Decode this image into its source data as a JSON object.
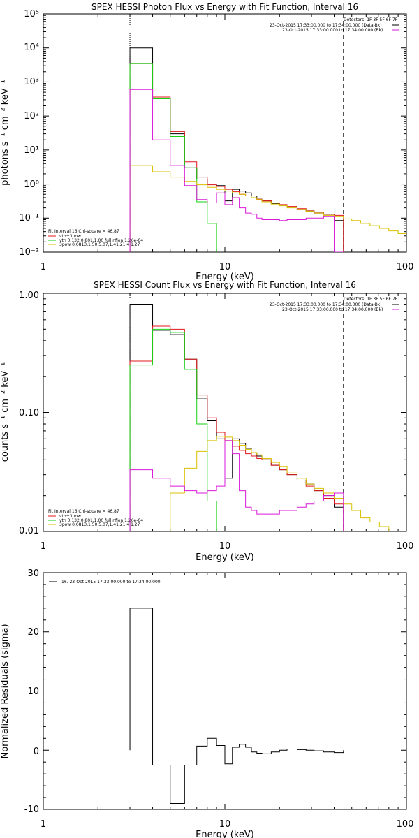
{
  "colors": {
    "black": "#000000",
    "red": "#e0181b",
    "green": "#16d012",
    "yellow": "#d9c000",
    "magenta": "#d91ad8"
  },
  "panel1": {
    "title": "SPEX HESSI Photon Flux vs Energy with Fit Function, Interval 16",
    "xlabel": "Energy (keV)",
    "ylabel": "photons s⁻¹ cm⁻² keV⁻¹",
    "xticks": [
      "1",
      "10",
      "100"
    ],
    "yticks": [
      "10⁻²",
      "10⁻¹",
      "10⁰",
      "10¹",
      "10²",
      "10³",
      "10⁴",
      "10⁵"
    ],
    "detectors": "Detectors: 1F 3F 5F 6F 7F",
    "times": [
      "23-Oct-2015 17:33:00.000 to 17:34:00.000 (Data-Bk)",
      "23-Oct-2015 17:33:00.000 to 17:34:00.000 (Bk)"
    ],
    "fit_legend": [
      "Fit Interval 16    Chi-square = 46.87",
      "vth+3pow",
      "vth 0.132,0.801,1.00  full nflon 1.26e-04",
      "3pow 0.0813,1.50,5.07,1.41,21.4,1.27"
    ]
  },
  "panel2": {
    "title": "SPEX HESSI Count Flux vs Energy with Fit Function, Interval 16",
    "xlabel": "Energy (keV)",
    "ylabel": "counts s⁻¹ cm⁻² keV⁻¹",
    "xticks": [
      "1",
      "10",
      "100"
    ],
    "yticks": [
      "0.01",
      "0.10",
      "1.00"
    ],
    "detectors": "Detectors: 1F 3F 5F 6F 7F",
    "times": [
      "23-Oct-2015 17:33:00.000 to 17:34:00.000 (Data-Bk)",
      "23-Oct-2015 17:33:00.000 to 17:34:00.000 (Bk)"
    ],
    "fit_legend": [
      "Fit Interval 16    Chi-square = 46.87",
      "vth+3pow",
      "vth 0.132,0.801,1.00  full nflon 1.26e-04",
      "3pow 0.0813,1.50,5.07,1.41,21.4,1.27"
    ]
  },
  "panel3": {
    "xlabel": "Energy (keV)",
    "ylabel": "Normalized Residuals (sigma)",
    "xticks": [
      "1",
      "10",
      "100"
    ],
    "yticks": [
      "-10",
      "0",
      "10",
      "20",
      "30"
    ],
    "legend": "16. 23-Oct-2015 17:33:00.000 to 17:34:00.000"
  },
  "chart_data": [
    {
      "type": "line",
      "title": "SPEX HESSI Photon Flux vs Energy with Fit Function, Interval 16",
      "xlabel": "Energy (keV)",
      "ylabel": "photons s⁻¹ cm⁻² keV⁻¹",
      "xscale": "log",
      "yscale": "log",
      "xlim": [
        1,
        100
      ],
      "ylim": [
        0.01,
        100000
      ],
      "fit_range_keV": [
        3.0,
        45.0
      ],
      "bin_edges_keV": [
        3.0,
        4.0,
        5.0,
        6.0,
        7.0,
        8.0,
        9.0,
        10.0,
        11.0,
        12.0,
        13.0,
        14.0,
        15.0,
        16.0,
        18.0,
        20.0,
        22.0,
        25.0,
        28.0,
        31.0,
        35.0,
        40.0,
        45.0,
        50.0,
        56.0,
        63.0,
        71.0,
        80.0,
        90.0,
        100.0
      ],
      "series": [
        {
          "name": "23-Oct-2015 17:33:00.000 to 17:34:00.000 (Data-Bk)",
          "color": "black",
          "values": [
            10000,
            330,
            30,
            3.0,
            1.4,
            1.0,
            0.9,
            0.32,
            0.7,
            0.62,
            0.55,
            0.45,
            0.36,
            0.32,
            0.27,
            0.24,
            0.21,
            0.18,
            0.16,
            0.14,
            0.13,
            0.085
          ]
        },
        {
          "name": "vth+3pow",
          "color": "red",
          "values": [
            3500,
            360,
            35,
            4.5,
            1.6,
            0.95,
            0.85,
            0.7,
            0.6,
            0.5,
            0.45,
            0.4,
            0.36,
            0.32,
            0.28,
            0.25,
            0.22,
            0.19,
            0.17,
            0.15,
            0.13,
            0.12
          ]
        },
        {
          "name": "vth",
          "color": "green",
          "values": [
            3500,
            320,
            25,
            3.0,
            0.3,
            0.07,
            0.005
          ]
        },
        {
          "name": "3pow",
          "color": "yellow",
          "values": [
            3.5,
            2.3,
            1.6,
            1.2,
            0.95,
            0.8,
            0.7,
            0.62,
            0.55,
            0.5,
            0.45,
            0.4,
            0.35,
            0.3,
            0.26,
            0.23,
            0.2,
            0.18,
            0.16,
            0.14,
            0.12,
            0.11,
            0.095,
            0.085,
            0.07,
            0.06,
            0.05,
            0.042,
            0.035
          ]
        },
        {
          "name": "23-Oct-2015 17:33:00.000 to 17:34:00.000 (Bk)",
          "color": "magenta",
          "values": [
            600,
            20,
            3.5,
            0.9,
            0.35,
            0.28,
            0.55,
            0.25,
            0.4,
            0.2,
            0.14,
            0.13,
            0.1,
            0.09,
            0.09,
            0.085,
            0.09,
            0.09,
            0.1,
            0.1,
            0.11,
            0.01
          ]
        }
      ]
    },
    {
      "type": "line",
      "title": "SPEX HESSI Count Flux vs Energy with Fit Function, Interval 16",
      "xlabel": "Energy (keV)",
      "ylabel": "counts s⁻¹ cm⁻² keV⁻¹",
      "xscale": "log",
      "yscale": "log",
      "xlim": [
        1,
        100
      ],
      "ylim": [
        0.01,
        1.0
      ],
      "fit_range_keV": [
        3.0,
        45.0
      ],
      "bin_edges_keV": [
        3.0,
        4.0,
        5.0,
        6.0,
        7.0,
        8.0,
        9.0,
        10.0,
        11.0,
        12.0,
        13.0,
        14.0,
        15.0,
        16.0,
        18.0,
        20.0,
        22.0,
        25.0,
        28.0,
        31.0,
        35.0,
        40.0,
        45.0,
        50.0,
        56.0,
        63.0,
        71.0,
        80.0,
        90.0,
        100.0
      ],
      "series": [
        {
          "name": "23-Oct-2015 17:33:00.000 to 17:34:00.000 (Data-Bk)",
          "color": "black",
          "values": [
            0.8,
            0.49,
            0.45,
            0.28,
            0.13,
            0.085,
            0.06,
            0.028,
            0.06,
            0.055,
            0.05,
            0.046,
            0.043,
            0.04,
            0.036,
            0.033,
            0.03,
            0.027,
            0.025,
            0.022,
            0.02,
            0.016
          ]
        },
        {
          "name": "vth+3pow",
          "color": "red",
          "values": [
            0.27,
            0.53,
            0.5,
            0.28,
            0.14,
            0.09,
            0.068,
            0.058,
            0.052,
            0.048,
            0.045,
            0.043,
            0.041,
            0.04,
            0.036,
            0.033,
            0.03,
            0.027,
            0.024,
            0.022,
            0.019,
            0.017
          ]
        },
        {
          "name": "vth",
          "color": "green",
          "values": [
            0.25,
            0.5,
            0.47,
            0.23,
            0.08,
            0.018,
            0.004
          ]
        },
        {
          "name": "3pow",
          "color": "yellow",
          "values": [
            0.004,
            0.01,
            0.021,
            0.034,
            0.047,
            0.058,
            0.063,
            0.062,
            0.058,
            0.053,
            0.049,
            0.046,
            0.044,
            0.041,
            0.038,
            0.035,
            0.031,
            0.028,
            0.025,
            0.023,
            0.021,
            0.019,
            0.017,
            0.015,
            0.013,
            0.012,
            0.011,
            0.0095,
            0.0085
          ]
        },
        {
          "name": "23-Oct-2015 17:33:00.000 to 17:34:00.000 (Bk)",
          "color": "magenta",
          "values": [
            0.033,
            0.028,
            0.024,
            0.022,
            0.021,
            0.022,
            0.024,
            0.058,
            0.045,
            0.022,
            0.016,
            0.015,
            0.014,
            0.014,
            0.014,
            0.015,
            0.015,
            0.016,
            0.017,
            0.018,
            0.02,
            0.021
          ]
        }
      ]
    },
    {
      "type": "line",
      "xlabel": "Energy (keV)",
      "ylabel": "Normalized Residuals (sigma)",
      "xscale": "log",
      "xlim": [
        1,
        100
      ],
      "ylim": [
        -10,
        30
      ],
      "bin_edges_keV": [
        3.0,
        4.0,
        5.0,
        6.0,
        7.0,
        8.0,
        9.0,
        10.0,
        11.0,
        12.0,
        13.0,
        14.0,
        15.0,
        16.0,
        18.0,
        20.0,
        22.0,
        25.0,
        28.0,
        31.0,
        35.0,
        40.0,
        45.0
      ],
      "series": [
        {
          "name": "16. 23-Oct-2015 17:33:00.000 to 17:34:00.000",
          "color": "black",
          "values": [
            24,
            -2.5,
            -9,
            -2.5,
            0.7,
            2.0,
            0.8,
            -2.3,
            0.5,
            1.0,
            0.5,
            -0.3,
            -0.5,
            -0.6,
            -0.3,
            0,
            0.2,
            0.1,
            0,
            -0.1,
            -0.3,
            -0.4
          ]
        }
      ]
    }
  ]
}
